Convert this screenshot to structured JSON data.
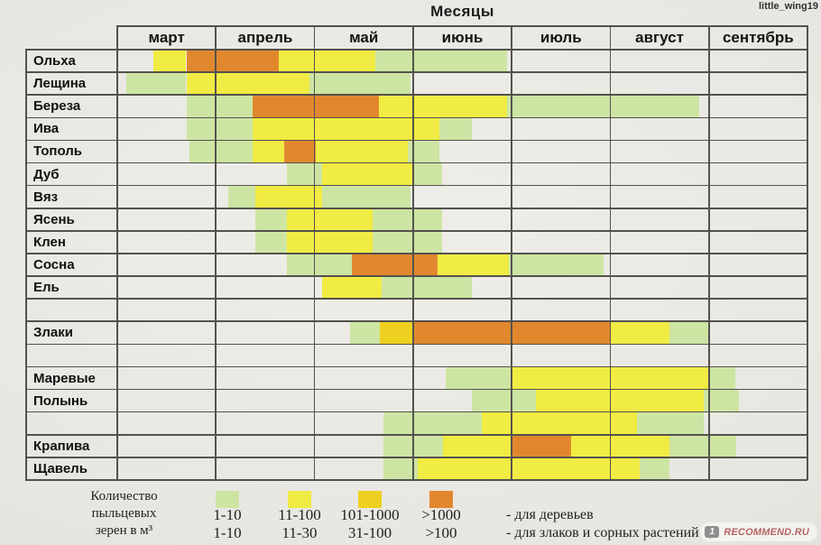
{
  "watermarks": {
    "username": "little_wing19",
    "badge_icon": "1",
    "badge_text": "RECOMMEND.RU"
  },
  "chart_data": {
    "type": "heatmap",
    "title": "Месяцы",
    "x_axis": {
      "label": "Месяцы",
      "categories": [
        "март",
        "апрель",
        "май",
        "июнь",
        "июль",
        "август",
        "сентябрь"
      ],
      "range_months": [
        0,
        7
      ]
    },
    "intensity_levels": {
      "1": {
        "color": "#cde5a3",
        "trees": "1-10",
        "grasses_weeds": "1-10"
      },
      "2": {
        "color": "#f1ec43",
        "trees": "11-100",
        "grasses_weeds": "11-30"
      },
      "3": {
        "color": "#eed021",
        "trees": "101-1000",
        "grasses_weeds": "31-100"
      },
      "4": {
        "color": "#e1882e",
        "trees": ">1000",
        "grasses_weeds": ">100"
      }
    },
    "series": [
      {
        "name": "Ольха",
        "segments": [
          [
            0.37,
            0.7,
            2
          ],
          [
            0.7,
            1.64,
            4
          ],
          [
            1.64,
            2.62,
            2
          ],
          [
            2.62,
            3.95,
            1
          ]
        ]
      },
      {
        "name": "Лещина",
        "segments": [
          [
            0.09,
            0.7,
            1
          ],
          [
            0.7,
            1.95,
            2
          ],
          [
            1.95,
            2.97,
            1
          ]
        ]
      },
      {
        "name": "Береза",
        "segments": [
          [
            0.7,
            1.37,
            1
          ],
          [
            1.37,
            2.65,
            4
          ],
          [
            2.65,
            3.95,
            2
          ],
          [
            3.95,
            5.9,
            1
          ]
        ]
      },
      {
        "name": "Ива",
        "segments": [
          [
            0.7,
            1.37,
            1
          ],
          [
            1.37,
            3.27,
            2
          ],
          [
            3.27,
            3.6,
            1
          ]
        ]
      },
      {
        "name": "Тополь",
        "segments": [
          [
            0.73,
            1.37,
            1
          ],
          [
            1.37,
            1.69,
            2
          ],
          [
            1.69,
            2.01,
            4
          ],
          [
            2.01,
            2.95,
            2
          ],
          [
            2.95,
            3.27,
            1
          ]
        ]
      },
      {
        "name": "Дуб",
        "segments": [
          [
            1.72,
            2.08,
            1
          ],
          [
            2.08,
            3.0,
            2
          ],
          [
            3.0,
            3.29,
            1
          ]
        ]
      },
      {
        "name": "Вяз",
        "segments": [
          [
            1.13,
            1.4,
            1
          ],
          [
            1.4,
            2.08,
            2
          ],
          [
            2.08,
            2.97,
            1
          ]
        ]
      },
      {
        "name": "Ясень",
        "segments": [
          [
            1.4,
            1.72,
            1
          ],
          [
            1.72,
            2.59,
            2
          ],
          [
            2.59,
            3.29,
            1
          ]
        ]
      },
      {
        "name": "Клен",
        "segments": [
          [
            1.4,
            1.72,
            1
          ],
          [
            1.72,
            2.59,
            2
          ],
          [
            2.59,
            3.29,
            1
          ]
        ]
      },
      {
        "name": "Сосна",
        "segments": [
          [
            1.72,
            2.38,
            1
          ],
          [
            2.38,
            3.25,
            4
          ],
          [
            3.25,
            3.97,
            2
          ],
          [
            3.97,
            4.93,
            1
          ]
        ]
      },
      {
        "name": "Ель",
        "segments": [
          [
            2.08,
            2.68,
            2
          ],
          [
            2.68,
            3.6,
            1
          ]
        ]
      },
      {
        "name": "",
        "segments": []
      },
      {
        "name": "Злаки",
        "segments": [
          [
            2.36,
            2.66,
            1
          ],
          [
            2.66,
            3.0,
            3
          ],
          [
            3.0,
            5.0,
            4
          ],
          [
            5.0,
            5.6,
            2
          ],
          [
            5.6,
            6.0,
            1
          ]
        ]
      },
      {
        "name": "",
        "segments": []
      },
      {
        "name": "Маревые",
        "segments": [
          [
            3.33,
            4.0,
            1
          ],
          [
            4.0,
            6.0,
            2
          ],
          [
            6.0,
            6.27,
            1
          ]
        ]
      },
      {
        "name": "Полынь",
        "segments": [
          [
            3.6,
            4.25,
            1
          ],
          [
            4.25,
            5.95,
            2
          ],
          [
            5.95,
            6.3,
            1
          ]
        ]
      },
      {
        "name": "",
        "segments": [
          [
            2.7,
            3.7,
            1
          ],
          [
            3.7,
            5.27,
            2
          ],
          [
            5.27,
            5.95,
            1
          ]
        ]
      },
      {
        "name": "Крапива",
        "segments": [
          [
            2.7,
            3.3,
            1
          ],
          [
            3.3,
            4.0,
            2
          ],
          [
            4.0,
            4.6,
            4
          ],
          [
            4.6,
            5.6,
            2
          ],
          [
            5.6,
            6.28,
            1
          ]
        ]
      },
      {
        "name": "Щавель",
        "segments": [
          [
            2.7,
            3.05,
            1
          ],
          [
            3.05,
            5.3,
            2
          ],
          [
            5.3,
            5.6,
            1
          ]
        ]
      }
    ]
  },
  "legend": {
    "caption_lines": [
      "Количество",
      "пыльцевых",
      "зерен в м³"
    ],
    "columns": [
      {
        "level": 1,
        "trees": "1-10",
        "grasses": "1-10"
      },
      {
        "level": 2,
        "trees": "11-100",
        "grasses": "11-30"
      },
      {
        "level": 3,
        "trees": "101-1000",
        "grasses": "31-100"
      },
      {
        "level": 4,
        "trees": ">1000",
        "grasses": ">100"
      }
    ],
    "trees_label": "- для деревьев",
    "grasses_label": "- для злаков и сорных растений"
  },
  "grid": {
    "line_color": "#54524d"
  }
}
